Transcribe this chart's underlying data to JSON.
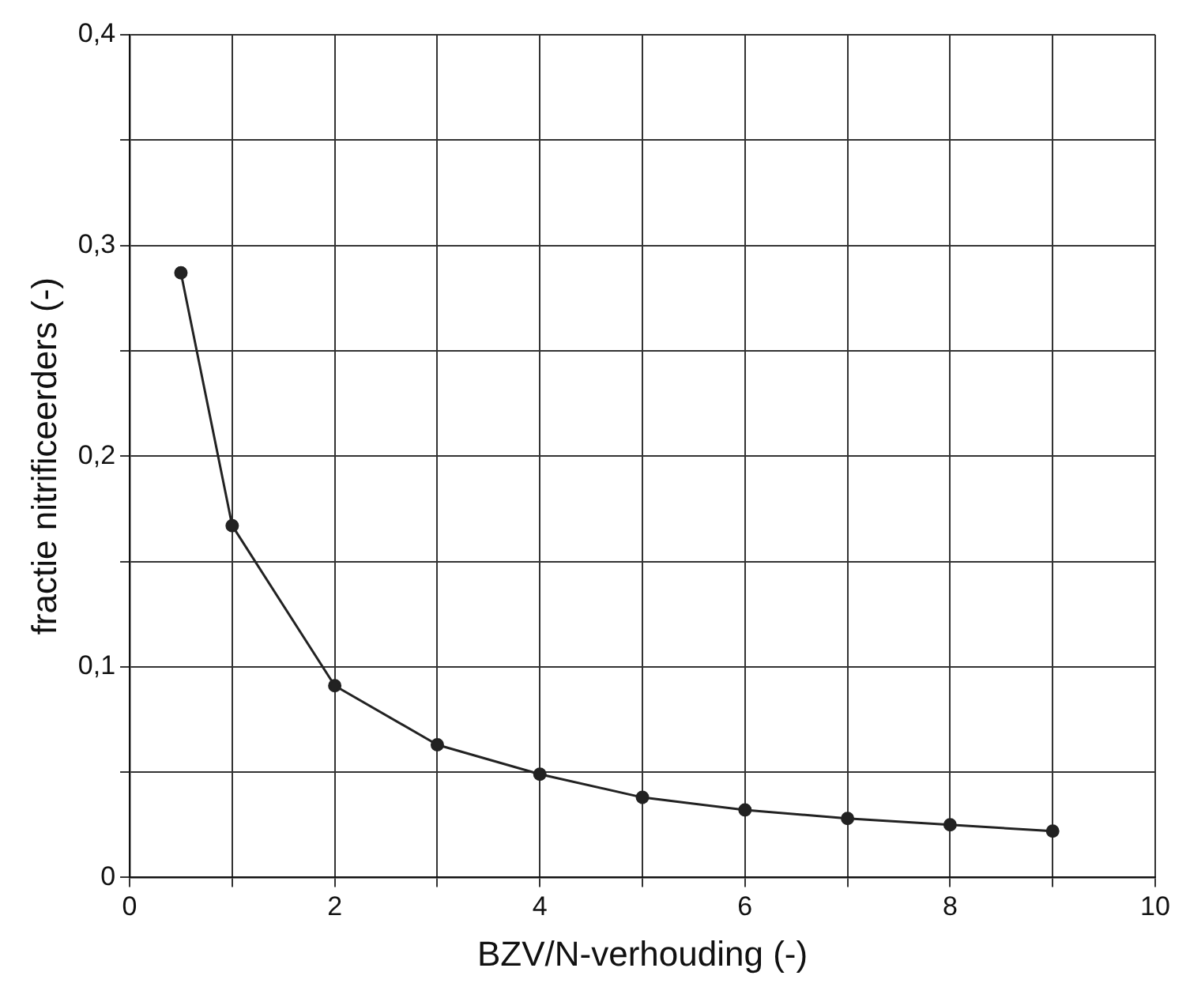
{
  "chart_data": {
    "type": "line",
    "xlabel": "BZV/N-verhouding (-)",
    "ylabel": "fractie nitrificeerders (-)",
    "x": [
      0.5,
      1,
      2,
      3,
      4,
      5,
      6,
      7,
      8,
      9
    ],
    "series": [
      {
        "color": "#222222",
        "values": [
          0.287,
          0.167,
          0.091,
          0.063,
          0.049,
          0.038,
          0.032,
          0.028,
          0.025,
          0.022
        ]
      }
    ],
    "xlim": [
      0,
      10
    ],
    "ylim": [
      0,
      0.4
    ],
    "xticks": [
      0,
      {
        "value": 1,
        "label": null
      },
      2,
      {
        "value": 3,
        "label": null
      },
      4,
      {
        "value": 5,
        "label": null
      },
      6,
      {
        "value": 7,
        "label": null
      },
      8,
      {
        "value": 9,
        "label": null
      },
      10
    ],
    "yticks": [
      {
        "value": 0,
        "label": "0"
      },
      {
        "value": 0.05,
        "label": null
      },
      {
        "value": 0.1,
        "label": "0,1"
      },
      {
        "value": 0.15,
        "label": null
      },
      {
        "value": 0.2,
        "label": "0,2"
      },
      {
        "value": 0.25,
        "label": null
      },
      {
        "value": 0.3,
        "label": "0,3"
      },
      {
        "value": 0.35,
        "label": null
      },
      {
        "value": 0.4,
        "label": "0,4"
      }
    ],
    "grid": true,
    "marker": "circle",
    "line_style": "solid"
  }
}
